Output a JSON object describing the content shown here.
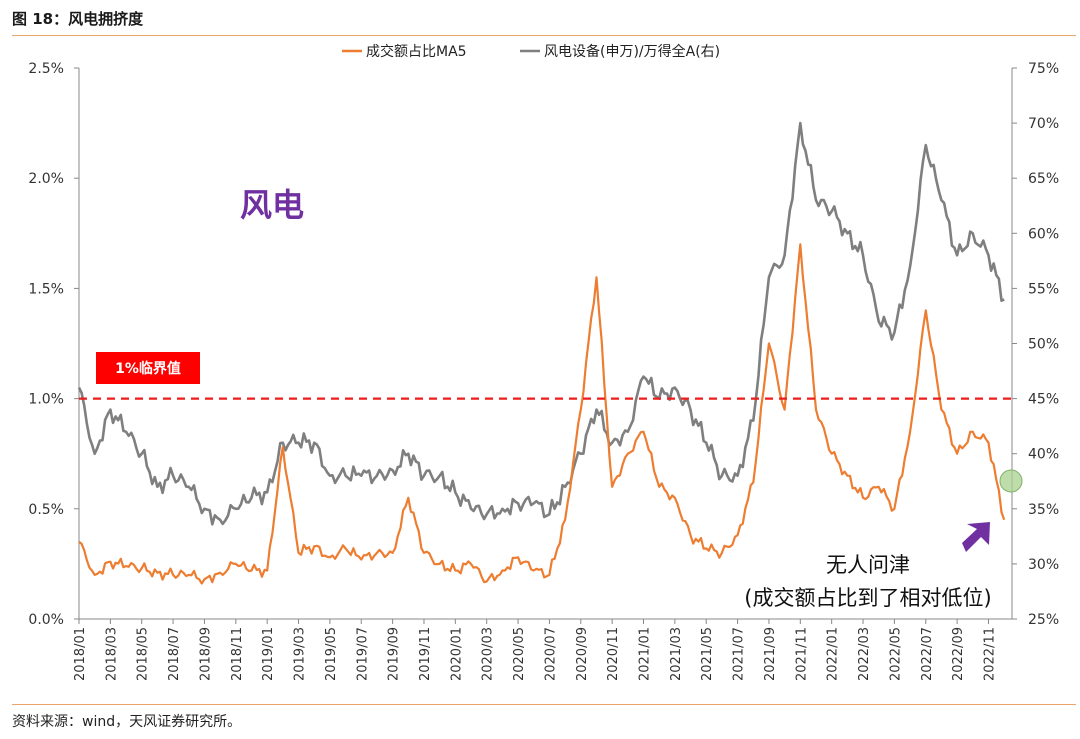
{
  "figure": {
    "title": "图 18：风电拥挤度",
    "source": "资料来源：wind，天风证券研究所。"
  },
  "colors": {
    "orange": "#ed7d31",
    "gray": "#7f7f7f",
    "threshold": "#ee1c1c",
    "purple": "#7030a0",
    "badge": "#ff0000",
    "circle": "#a9d18e"
  },
  "annotations": {
    "panel_label": "风电",
    "threshold_label": "1%临界值",
    "note_line1": "无人问津",
    "note_line2": "(成交额占比到了相对低位)"
  },
  "chart_data": {
    "type": "line",
    "legend": [
      "成交额占比MA5",
      "风电设备(申万)/万得全A(右)"
    ],
    "legend_position": "top",
    "x_ticks": [
      "2018/01",
      "2018/03",
      "2018/05",
      "2018/07",
      "2018/09",
      "2018/11",
      "2019/01",
      "2019/03",
      "2019/05",
      "2019/07",
      "2019/09",
      "2019/11",
      "2020/01",
      "2020/03",
      "2020/05",
      "2020/07",
      "2020/09",
      "2020/11",
      "2021/01",
      "2021/03",
      "2021/05",
      "2021/07",
      "2021/09",
      "2021/11",
      "2022/01",
      "2022/03",
      "2022/05",
      "2022/07",
      "2022/09",
      "2022/11"
    ],
    "y_left": {
      "range": [
        0,
        2.5
      ],
      "ticks": [
        "0.0%",
        "0.5%",
        "1.0%",
        "1.5%",
        "2.0%",
        "2.5%"
      ]
    },
    "y_right": {
      "range": [
        25,
        75
      ],
      "ticks": [
        "25%",
        "30%",
        "35%",
        "40%",
        "45%",
        "50%",
        "55%",
        "60%",
        "65%",
        "70%",
        "75%"
      ]
    },
    "threshold": 1.0,
    "series": [
      {
        "name": "成交额占比MA5",
        "axis": "left",
        "points": [
          [
            "2018/01",
            0.35
          ],
          [
            "2018/02",
            0.2
          ],
          [
            "2018/03",
            0.26
          ],
          [
            "2018/04",
            0.24
          ],
          [
            "2018/05",
            0.23
          ],
          [
            "2018/06",
            0.21
          ],
          [
            "2018/07",
            0.2
          ],
          [
            "2018/08",
            0.2
          ],
          [
            "2018/09",
            0.18
          ],
          [
            "2018/10",
            0.21
          ],
          [
            "2018/11",
            0.25
          ],
          [
            "2018/12",
            0.22
          ],
          [
            "2019/01",
            0.22
          ],
          [
            "2019/02",
            0.78
          ],
          [
            "2019/03",
            0.3
          ],
          [
            "2019/04",
            0.33
          ],
          [
            "2019/05",
            0.28
          ],
          [
            "2019/06",
            0.32
          ],
          [
            "2019/07",
            0.27
          ],
          [
            "2019/08",
            0.3
          ],
          [
            "2019/09",
            0.3
          ],
          [
            "2019/10",
            0.55
          ],
          [
            "2019/11",
            0.3
          ],
          [
            "2019/12",
            0.25
          ],
          [
            "2020/01",
            0.22
          ],
          [
            "2020/02",
            0.25
          ],
          [
            "2020/03",
            0.17
          ],
          [
            "2020/04",
            0.22
          ],
          [
            "2020/05",
            0.28
          ],
          [
            "2020/06",
            0.22
          ],
          [
            "2020/07",
            0.2
          ],
          [
            "2020/08",
            0.45
          ],
          [
            "2020/09",
            0.95
          ],
          [
            "2020/10",
            1.55
          ],
          [
            "2020/11",
            0.6
          ],
          [
            "2020/12",
            0.75
          ],
          [
            "2021/01",
            0.85
          ],
          [
            "2021/02",
            0.6
          ],
          [
            "2021/03",
            0.55
          ],
          [
            "2021/04",
            0.38
          ],
          [
            "2021/05",
            0.32
          ],
          [
            "2021/06",
            0.3
          ],
          [
            "2021/07",
            0.38
          ],
          [
            "2021/08",
            0.62
          ],
          [
            "2021/09",
            1.25
          ],
          [
            "2021/10",
            0.95
          ],
          [
            "2021/11",
            1.7
          ],
          [
            "2021/12",
            0.95
          ],
          [
            "2022/01",
            0.75
          ],
          [
            "2022/02",
            0.65
          ],
          [
            "2022/03",
            0.55
          ],
          [
            "2022/04",
            0.6
          ],
          [
            "2022/05",
            0.5
          ],
          [
            "2022/06",
            0.85
          ],
          [
            "2022/07",
            1.4
          ],
          [
            "2022/08",
            0.95
          ],
          [
            "2022/09",
            0.75
          ],
          [
            "2022/10",
            0.85
          ],
          [
            "2022/11",
            0.8
          ],
          [
            "2022/12",
            0.45
          ]
        ]
      },
      {
        "name": "风电设备(申万)/万得全A(右)",
        "axis": "right",
        "points": [
          [
            "2018/01",
            46
          ],
          [
            "2018/02",
            40
          ],
          [
            "2018/03",
            44
          ],
          [
            "2018/04",
            42
          ],
          [
            "2018/05",
            40
          ],
          [
            "2018/06",
            37
          ],
          [
            "2018/07",
            38
          ],
          [
            "2018/08",
            37
          ],
          [
            "2018/09",
            35
          ],
          [
            "2018/10",
            34
          ],
          [
            "2018/11",
            35
          ],
          [
            "2018/12",
            36
          ],
          [
            "2019/01",
            36.5
          ],
          [
            "2019/02",
            41
          ],
          [
            "2019/03",
            41
          ],
          [
            "2019/04",
            41
          ],
          [
            "2019/05",
            38
          ],
          [
            "2019/06",
            38
          ],
          [
            "2019/07",
            38
          ],
          [
            "2019/08",
            38
          ],
          [
            "2019/09",
            38.5
          ],
          [
            "2019/10",
            40
          ],
          [
            "2019/11",
            38
          ],
          [
            "2019/12",
            38
          ],
          [
            "2020/01",
            36.5
          ],
          [
            "2020/02",
            35
          ],
          [
            "2020/03",
            34.5
          ],
          [
            "2020/04",
            35
          ],
          [
            "2020/05",
            35.5
          ],
          [
            "2020/06",
            35.5
          ],
          [
            "2020/07",
            34.5
          ],
          [
            "2020/08",
            37
          ],
          [
            "2020/09",
            40
          ],
          [
            "2020/10",
            44
          ],
          [
            "2020/11",
            41
          ],
          [
            "2020/12",
            42
          ],
          [
            "2021/01",
            47
          ],
          [
            "2021/02",
            45
          ],
          [
            "2021/03",
            46
          ],
          [
            "2021/04",
            44
          ],
          [
            "2021/05",
            41
          ],
          [
            "2021/06",
            38
          ],
          [
            "2021/07",
            38
          ],
          [
            "2021/08",
            43
          ],
          [
            "2021/09",
            56
          ],
          [
            "2021/10",
            58
          ],
          [
            "2021/11",
            70
          ],
          [
            "2021/12",
            63
          ],
          [
            "2022/01",
            62
          ],
          [
            "2022/02",
            60
          ],
          [
            "2022/03",
            58
          ],
          [
            "2022/04",
            52
          ],
          [
            "2022/05",
            51
          ],
          [
            "2022/06",
            57
          ],
          [
            "2022/07",
            68
          ],
          [
            "2022/08",
            63
          ],
          [
            "2022/09",
            58
          ],
          [
            "2022/10",
            60
          ],
          [
            "2022/11",
            58
          ],
          [
            "2022/12",
            54
          ]
        ]
      }
    ]
  }
}
